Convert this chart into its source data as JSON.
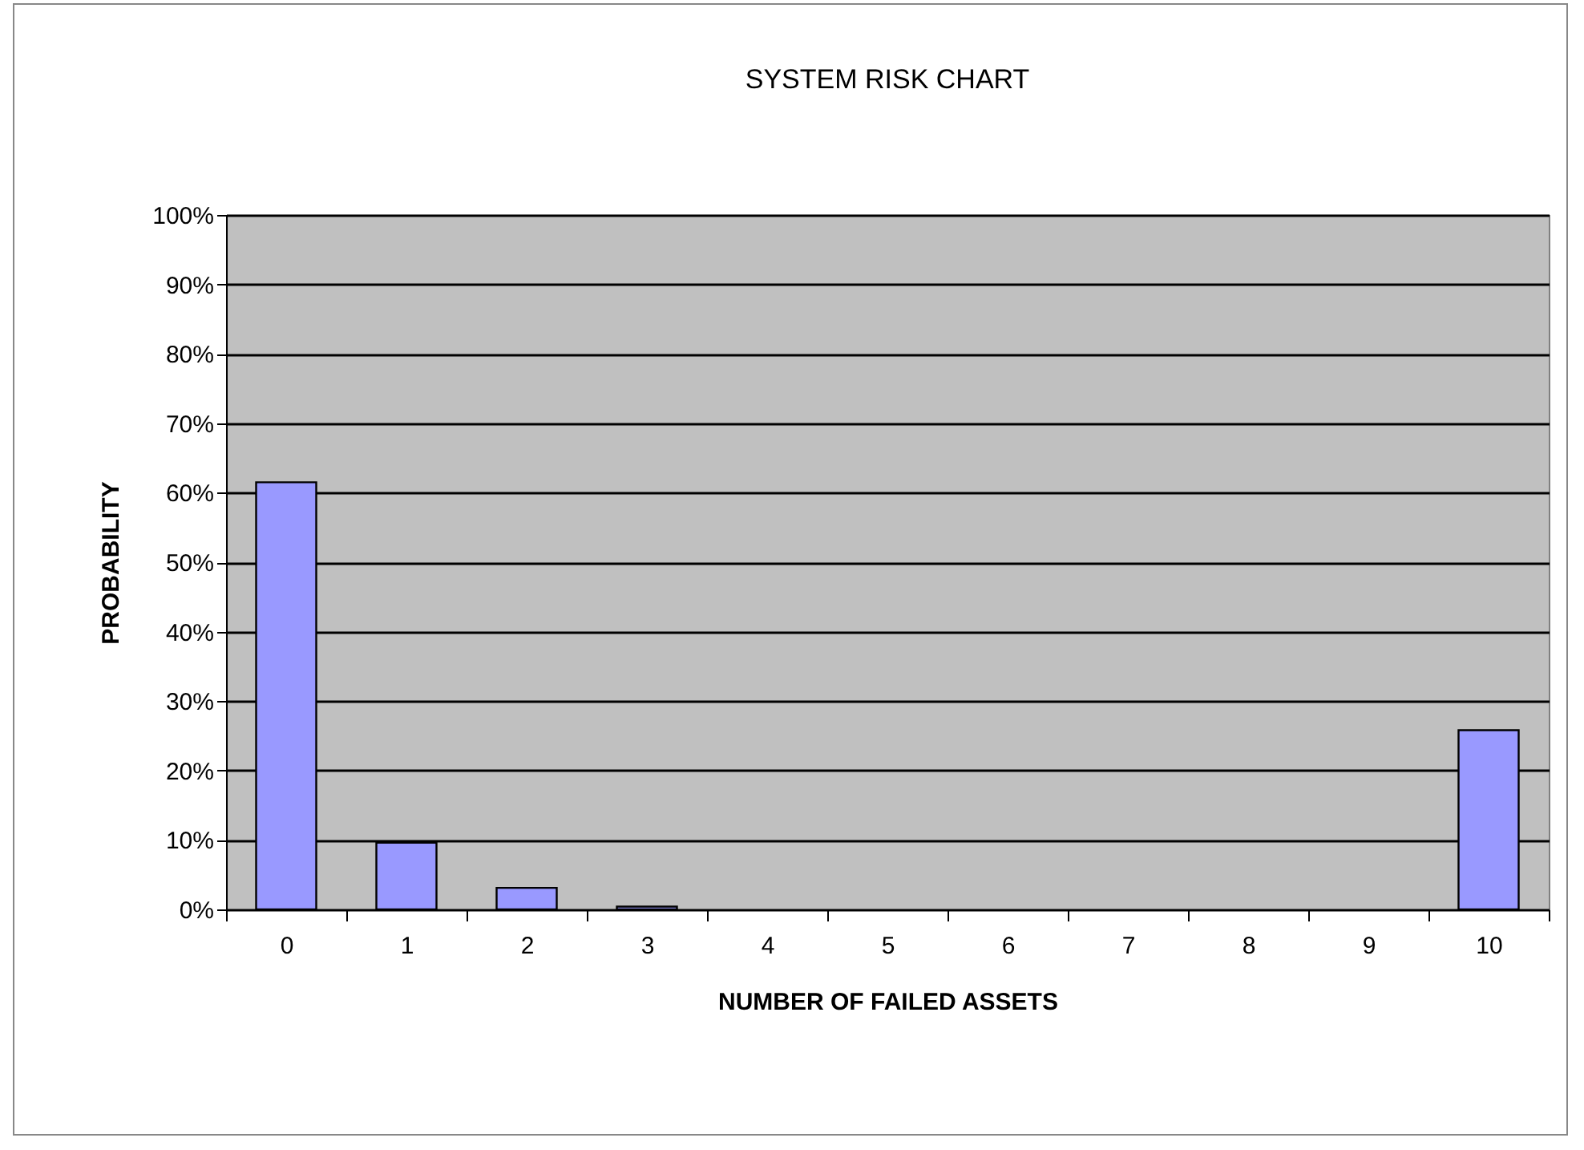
{
  "chart_data": {
    "type": "bar",
    "title": "SYSTEM RISK CHART",
    "xlabel": "NUMBER OF FAILED ASSETS",
    "ylabel": "PROBABILITY",
    "categories": [
      "0",
      "1",
      "2",
      "3",
      "4",
      "5",
      "6",
      "7",
      "8",
      "9",
      "10"
    ],
    "values": [
      61.5,
      9.6,
      3.1,
      0.4,
      0,
      0,
      0,
      0,
      0,
      0,
      25.8
    ],
    "color": "#9999ff",
    "ylim": [
      0,
      100
    ],
    "yticks": [
      {
        "value": 0,
        "label": "0%"
      },
      {
        "value": 10,
        "label": "10%"
      },
      {
        "value": 20,
        "label": "20%"
      },
      {
        "value": 30,
        "label": "30%"
      },
      {
        "value": 40,
        "label": "40%"
      },
      {
        "value": 50,
        "label": "50%"
      },
      {
        "value": 60,
        "label": "60%"
      },
      {
        "value": 70,
        "label": "70%"
      },
      {
        "value": 80,
        "label": "80%"
      },
      {
        "value": 90,
        "label": "90%"
      },
      {
        "value": 100,
        "label": "100%"
      }
    ],
    "grid": "y"
  }
}
